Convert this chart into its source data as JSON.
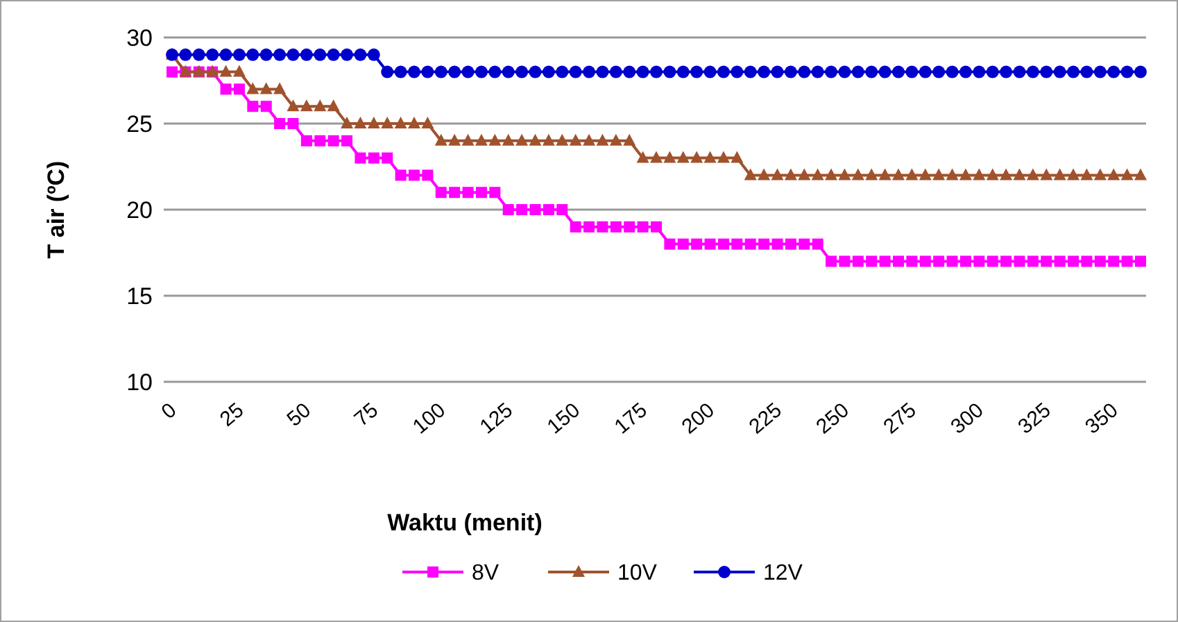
{
  "chart_data": {
    "type": "line",
    "xlabel": "Waktu (menit)",
    "ylabel": "T air (ºC)",
    "categories": [
      "0",
      null,
      null,
      null,
      null,
      "25",
      null,
      null,
      null,
      null,
      "50",
      null,
      null,
      null,
      null,
      "75",
      null,
      null,
      null,
      null,
      "100",
      null,
      null,
      null,
      null,
      "125",
      null,
      null,
      null,
      null,
      "150",
      null,
      null,
      null,
      null,
      "175",
      null,
      null,
      null,
      null,
      "200",
      null,
      null,
      null,
      null,
      "225",
      null,
      null,
      null,
      null,
      "250",
      null,
      null,
      null,
      null,
      "275",
      null,
      null,
      null,
      null,
      "300",
      null,
      null,
      null,
      null,
      "325",
      null,
      null,
      null,
      null,
      "350",
      null,
      null
    ],
    "ylim": [
      10,
      30
    ],
    "yticks": [
      10,
      15,
      20,
      25,
      30
    ],
    "grid": "y",
    "legend": "bottom",
    "line_style": "solid",
    "series": [
      {
        "name": "8V",
        "color": "#ff00ff",
        "marker": "square",
        "values": [
          28,
          28,
          28,
          28,
          27,
          27,
          26,
          26,
          25,
          25,
          24,
          24,
          24,
          24,
          23,
          23,
          23,
          22,
          22,
          22,
          21,
          21,
          21,
          21,
          21,
          20,
          20,
          20,
          20,
          20,
          19,
          19,
          19,
          19,
          19,
          19,
          19,
          18,
          18,
          18,
          18,
          18,
          18,
          18,
          18,
          18,
          18,
          18,
          18,
          17,
          17,
          17,
          17,
          17,
          17,
          17,
          17,
          17,
          17,
          17,
          17,
          17,
          17,
          17,
          17,
          17,
          17,
          17,
          17,
          17,
          17,
          17,
          17
        ]
      },
      {
        "name": "10V",
        "color": "#a0522d",
        "marker": "triangle",
        "values": [
          29,
          28,
          28,
          28,
          28,
          28,
          27,
          27,
          27,
          26,
          26,
          26,
          26,
          25,
          25,
          25,
          25,
          25,
          25,
          25,
          24,
          24,
          24,
          24,
          24,
          24,
          24,
          24,
          24,
          24,
          24,
          24,
          24,
          24,
          24,
          23,
          23,
          23,
          23,
          23,
          23,
          23,
          23,
          22,
          22,
          22,
          22,
          22,
          22,
          22,
          22,
          22,
          22,
          22,
          22,
          22,
          22,
          22,
          22,
          22,
          22,
          22,
          22,
          22,
          22,
          22,
          22,
          22,
          22,
          22,
          22,
          22,
          22
        ]
      },
      {
        "name": "12V",
        "color": "#0000cc",
        "marker": "circle",
        "values": [
          29,
          29,
          29,
          29,
          29,
          29,
          29,
          29,
          29,
          29,
          29,
          29,
          29,
          29,
          29,
          29,
          28,
          28,
          28,
          28,
          28,
          28,
          28,
          28,
          28,
          28,
          28,
          28,
          28,
          28,
          28,
          28,
          28,
          28,
          28,
          28,
          28,
          28,
          28,
          28,
          28,
          28,
          28,
          28,
          28,
          28,
          28,
          28,
          28,
          28,
          28,
          28,
          28,
          28,
          28,
          28,
          28,
          28,
          28,
          28,
          28,
          28,
          28,
          28,
          28,
          28,
          28,
          28,
          28,
          28,
          28,
          28,
          28
        ]
      }
    ]
  }
}
